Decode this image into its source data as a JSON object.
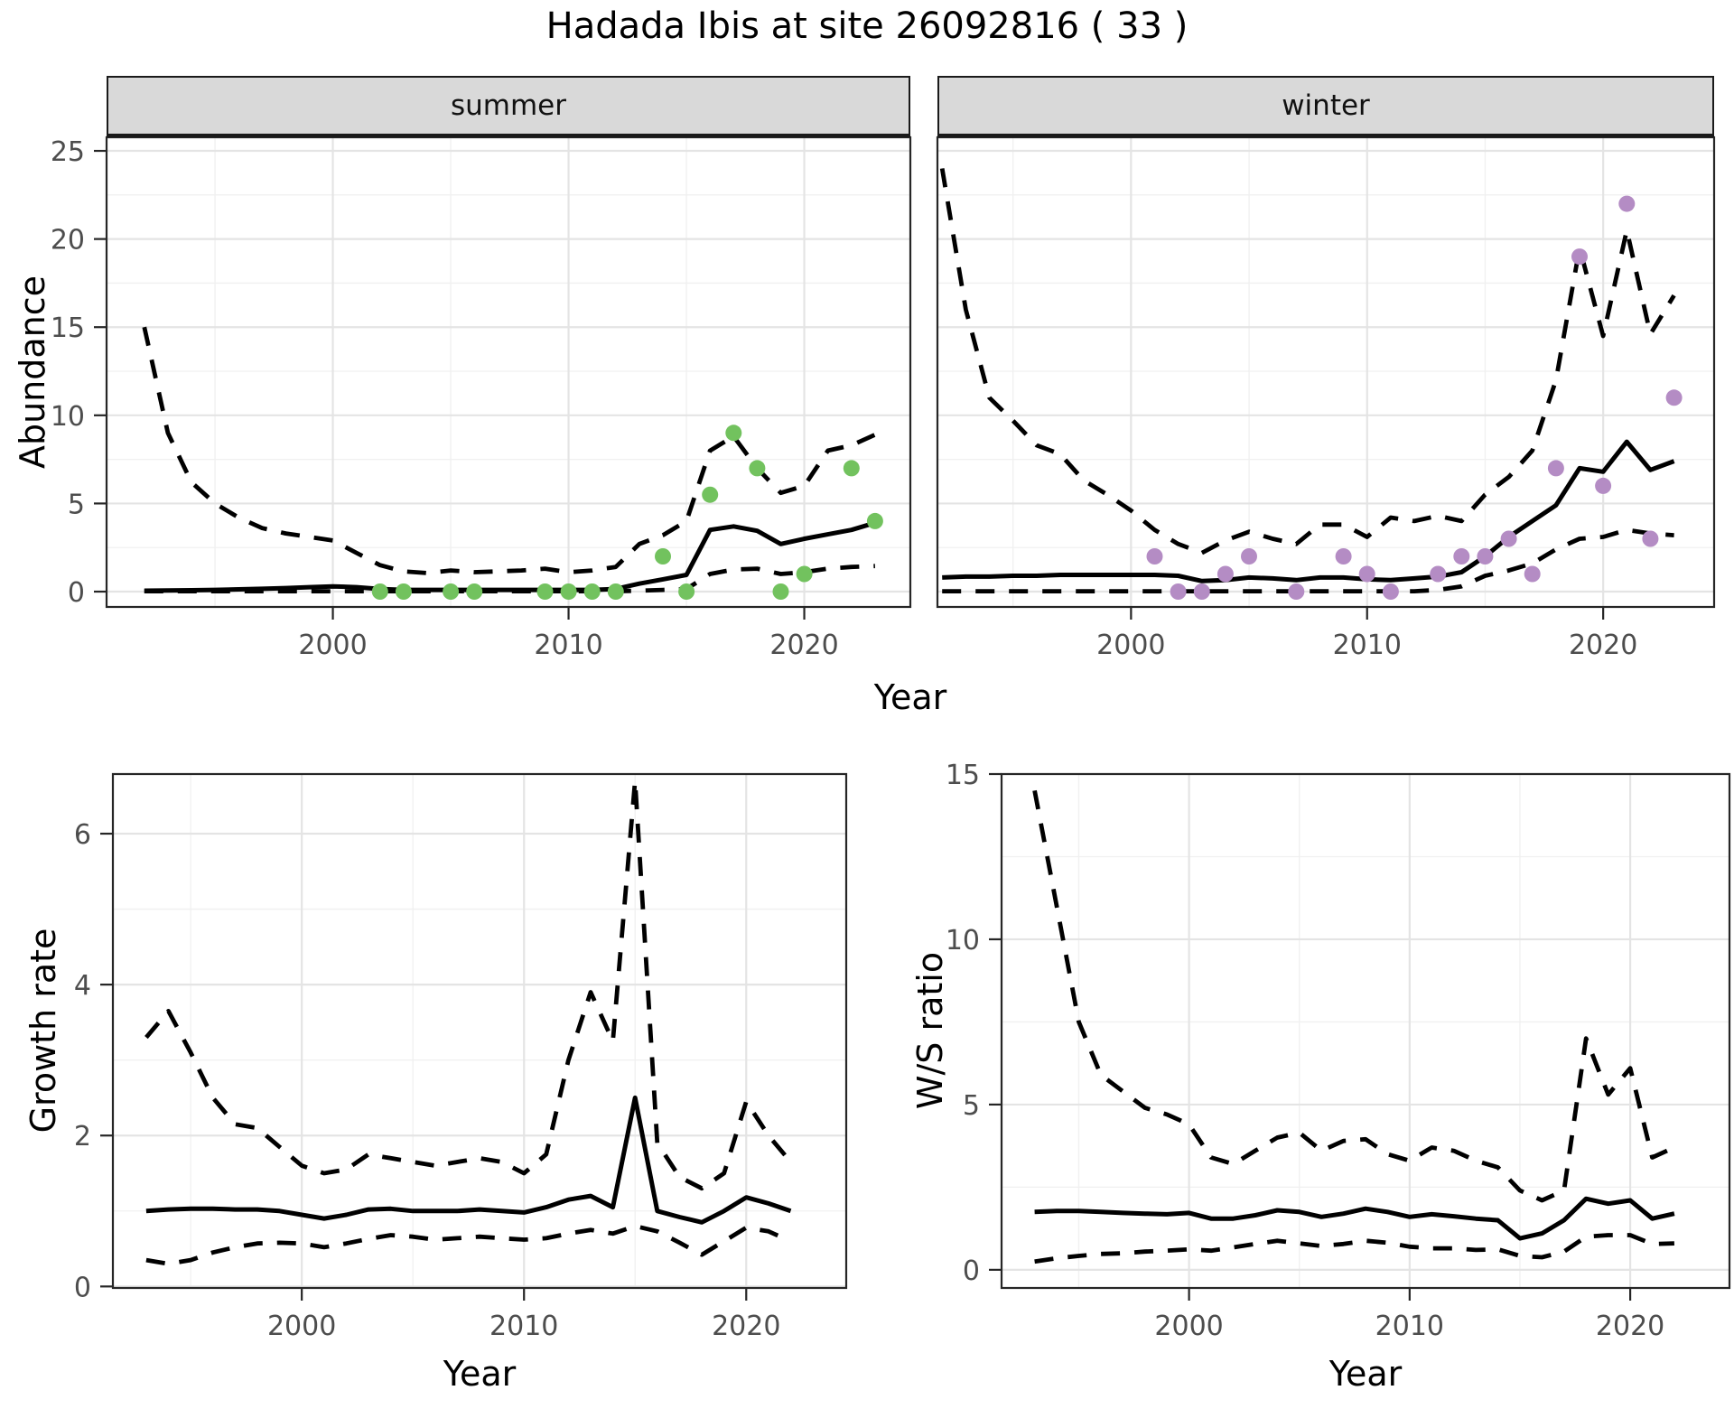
{
  "title": "Hadada Ibis at site 26092816 ( 33 )",
  "axis_titles": {
    "abundance_y": "Abundance",
    "top_x": "Year",
    "growth_y": "Growth rate",
    "growth_x": "Year",
    "ws_y": "W/S ratio",
    "ws_x": "Year"
  },
  "colors": {
    "summer_points": "#72c25e",
    "winter_points": "#b48cc4",
    "median_line": "#000000",
    "interval_line": "#000000",
    "strip_bg": "#d9d9d9",
    "grid_major": "#e4e4e4",
    "grid_minor": "#f0f0f0",
    "panel_border": "#262626",
    "tick_label": "#4d4d4d"
  },
  "chart_data": [
    {
      "id": "abundance-summer",
      "type": "line",
      "facet_label": "summer",
      "ylabel": "Abundance",
      "xlabel": "Year",
      "x_ticks": [
        2000,
        2010,
        2020
      ],
      "x_minor": [
        1995,
        2005,
        2015
      ],
      "y_ticks": [
        0,
        5,
        10,
        15,
        20,
        25
      ],
      "y_minor": [
        2.5,
        7.5,
        12.5,
        17.5,
        22.5
      ],
      "x_range": [
        1990.4,
        2024.5
      ],
      "y_range": [
        -0.87,
        25.77
      ],
      "show_y_labels": true,
      "point_color": "#72c25e",
      "years": [
        1992,
        1993,
        1994,
        1995,
        1996,
        1997,
        1998,
        1999,
        2000,
        2001,
        2002,
        2003,
        2004,
        2005,
        2006,
        2007,
        2008,
        2009,
        2010,
        2011,
        2012,
        2013,
        2014,
        2015,
        2016,
        2017,
        2018,
        2019,
        2020,
        2021,
        2022,
        2023
      ],
      "median": [
        0.05,
        0.06,
        0.08,
        0.1,
        0.13,
        0.16,
        0.2,
        0.25,
        0.3,
        0.25,
        0.15,
        0.1,
        0.1,
        0.1,
        0.1,
        0.1,
        0.1,
        0.1,
        0.1,
        0.1,
        0.15,
        0.45,
        0.7,
        0.95,
        3.5,
        3.7,
        3.45,
        2.7,
        3.0,
        3.25,
        3.5,
        3.9
      ],
      "upper": [
        15,
        9,
        6.2,
        5,
        4.2,
        3.6,
        3.3,
        3.1,
        2.9,
        2.2,
        1.5,
        1.15,
        1.05,
        1.2,
        1.1,
        1.15,
        1.2,
        1.3,
        1.1,
        1.2,
        1.4,
        2.7,
        3.2,
        4,
        8,
        8.8,
        7,
        5.6,
        6,
        8,
        8.3,
        8.9
      ],
      "lower": [
        0.02,
        0.02,
        0.02,
        0.02,
        0.02,
        0.02,
        0.02,
        0.02,
        0.02,
        0.02,
        0.02,
        0.02,
        0.02,
        0.02,
        0.02,
        0.02,
        0.02,
        0.02,
        0.02,
        0.02,
        0.02,
        0.05,
        0.1,
        0.15,
        1.0,
        1.25,
        1.3,
        1.0,
        1.1,
        1.3,
        1.4,
        1.45
      ],
      "obs_years": [
        2002,
        2003,
        2005,
        2006,
        2009,
        2010,
        2011,
        2012,
        2014,
        2015,
        2016,
        2017,
        2018,
        2019,
        2020,
        2022,
        2023
      ],
      "obs_values": [
        0,
        0,
        0,
        0,
        0,
        0,
        0,
        0,
        2,
        0,
        5.5,
        9,
        7,
        0,
        1,
        7,
        4
      ]
    },
    {
      "id": "abundance-winter",
      "type": "line",
      "facet_label": "winter",
      "ylabel": "Abundance",
      "xlabel": "Year",
      "x_ticks": [
        2000,
        2010,
        2020
      ],
      "x_minor": [
        1995,
        2005,
        2015
      ],
      "y_ticks": [
        0,
        5,
        10,
        15,
        20,
        25
      ],
      "y_minor": [
        2.5,
        7.5,
        12.5,
        17.5,
        22.5
      ],
      "x_range": [
        1991.8,
        2024.7
      ],
      "y_range": [
        -0.87,
        25.77
      ],
      "show_y_labels": false,
      "point_color": "#b48cc4",
      "years": [
        1992,
        1993,
        1994,
        1995,
        1996,
        1997,
        1998,
        1999,
        2000,
        2001,
        2002,
        2003,
        2004,
        2005,
        2006,
        2007,
        2008,
        2009,
        2010,
        2011,
        2012,
        2013,
        2014,
        2015,
        2016,
        2017,
        2018,
        2019,
        2020,
        2021,
        2022,
        2023
      ],
      "median": [
        0.8,
        0.85,
        0.85,
        0.9,
        0.9,
        0.95,
        0.95,
        0.95,
        0.95,
        0.95,
        0.9,
        0.6,
        0.65,
        0.8,
        0.75,
        0.65,
        0.8,
        0.8,
        0.7,
        0.65,
        0.75,
        0.85,
        1.1,
        2,
        3.1,
        4,
        4.9,
        7,
        6.8,
        8.5,
        6.9,
        7.4
      ],
      "upper": [
        24,
        16,
        11,
        9.7,
        8.3,
        7.8,
        6.3,
        5.5,
        4.6,
        3.5,
        2.7,
        2.2,
        2.9,
        3.4,
        3,
        2.7,
        3.8,
        3.8,
        3.1,
        4.2,
        4,
        4.3,
        4,
        5.5,
        6.5,
        8,
        12,
        19.5,
        14.5,
        20.5,
        14.6,
        16.8
      ],
      "lower": [
        0.02,
        0.02,
        0.02,
        0.02,
        0.02,
        0.02,
        0.02,
        0.02,
        0.02,
        0.02,
        0.02,
        0.02,
        0.02,
        0.02,
        0.02,
        0.02,
        0.02,
        0.02,
        0.02,
        0.02,
        0.02,
        0.1,
        0.3,
        0.9,
        1.2,
        1.6,
        2.4,
        3.0,
        3.1,
        3.5,
        3.3,
        3.2
      ],
      "obs_years": [
        2001,
        2002,
        2003,
        2004,
        2005,
        2007,
        2009,
        2010,
        2011,
        2013,
        2014,
        2015,
        2016,
        2017,
        2018,
        2019,
        2020,
        2021,
        2022,
        2023
      ],
      "obs_values": [
        2,
        0,
        0,
        1,
        2,
        0,
        2,
        1,
        0,
        1,
        2,
        2,
        3,
        1,
        7,
        19,
        6,
        22,
        3,
        11
      ]
    },
    {
      "id": "growth-rate",
      "type": "line",
      "facet_label": "",
      "ylabel": "Growth rate",
      "xlabel": "Year",
      "x_ticks": [
        2000,
        2010,
        2020
      ],
      "x_minor": [
        1995,
        2005,
        2015
      ],
      "y_ticks": [
        0,
        2,
        4,
        6
      ],
      "y_minor": [
        1,
        3,
        5
      ],
      "x_range": [
        1991.5,
        2024.5
      ],
      "y_range": [
        -0.02,
        6.79
      ],
      "show_y_labels": true,
      "point_color": null,
      "years": [
        1993,
        1994,
        1995,
        1996,
        1997,
        1998,
        1999,
        2000,
        2001,
        2002,
        2003,
        2004,
        2005,
        2006,
        2007,
        2008,
        2009,
        2010,
        2011,
        2012,
        2013,
        2014,
        2015,
        2016,
        2017,
        2018,
        2019,
        2020,
        2021,
        2022
      ],
      "median": [
        1,
        1.02,
        1.03,
        1.03,
        1.02,
        1.02,
        1,
        0.95,
        0.9,
        0.95,
        1.02,
        1.03,
        1,
        1,
        1,
        1.02,
        1,
        0.98,
        1.05,
        1.15,
        1.2,
        1.05,
        2.5,
        1,
        0.92,
        0.85,
        1,
        1.18,
        1.1,
        1
      ],
      "upper": [
        3.3,
        3.65,
        3.1,
        2.5,
        2.15,
        2.1,
        1.85,
        1.6,
        1.5,
        1.55,
        1.75,
        1.7,
        1.65,
        1.6,
        1.65,
        1.7,
        1.65,
        1.5,
        1.75,
        3.0,
        3.9,
        3.25,
        6.7,
        1.9,
        1.45,
        1.3,
        1.5,
        2.45,
        2,
        1.65
      ],
      "lower": [
        0.35,
        0.3,
        0.35,
        0.45,
        0.52,
        0.57,
        0.58,
        0.57,
        0.52,
        0.57,
        0.63,
        0.68,
        0.66,
        0.62,
        0.64,
        0.66,
        0.64,
        0.62,
        0.64,
        0.7,
        0.75,
        0.7,
        0.8,
        0.73,
        0.58,
        0.42,
        0.6,
        0.78,
        0.73,
        0.6
      ],
      "obs_years": [],
      "obs_values": []
    },
    {
      "id": "ws-ratio",
      "type": "line",
      "facet_label": "",
      "ylabel": "W/S ratio",
      "xlabel": "Year",
      "x_ticks": [
        2000,
        2010,
        2020
      ],
      "x_minor": [
        1995,
        2005,
        2015
      ],
      "y_ticks": [
        0,
        5,
        10,
        15
      ],
      "y_minor": [
        2.5,
        7.5,
        12.5
      ],
      "x_range": [
        1991.5,
        2024.5
      ],
      "y_range": [
        -0.55,
        15.0
      ],
      "show_y_labels": true,
      "point_color": null,
      "years": [
        1993,
        1994,
        1995,
        1996,
        1997,
        1998,
        1999,
        2000,
        2001,
        2002,
        2003,
        2004,
        2005,
        2006,
        2007,
        2008,
        2009,
        2010,
        2011,
        2012,
        2013,
        2014,
        2015,
        2016,
        2017,
        2018,
        2019,
        2020,
        2021,
        2022
      ],
      "median": [
        1.75,
        1.78,
        1.78,
        1.75,
        1.72,
        1.7,
        1.68,
        1.72,
        1.55,
        1.55,
        1.65,
        1.8,
        1.75,
        1.6,
        1.7,
        1.85,
        1.75,
        1.6,
        1.68,
        1.62,
        1.55,
        1.5,
        0.95,
        1.1,
        1.5,
        2.15,
        2,
        2.1,
        1.55,
        1.7
      ],
      "upper": [
        14.5,
        11,
        7.5,
        5.9,
        5.4,
        4.9,
        4.7,
        4.4,
        3.4,
        3.2,
        3.6,
        4,
        4.15,
        3.6,
        3.9,
        3.95,
        3.5,
        3.3,
        3.7,
        3.6,
        3.3,
        3.1,
        2.4,
        2.1,
        2.4,
        7,
        5.3,
        6.1,
        3.4,
        3.7
      ],
      "lower": [
        0.25,
        0.35,
        0.42,
        0.48,
        0.5,
        0.55,
        0.58,
        0.62,
        0.58,
        0.68,
        0.78,
        0.88,
        0.8,
        0.72,
        0.78,
        0.88,
        0.82,
        0.7,
        0.65,
        0.65,
        0.6,
        0.62,
        0.42,
        0.38,
        0.55,
        1,
        1.05,
        1.05,
        0.78,
        0.8
      ],
      "obs_years": [],
      "obs_values": []
    }
  ]
}
